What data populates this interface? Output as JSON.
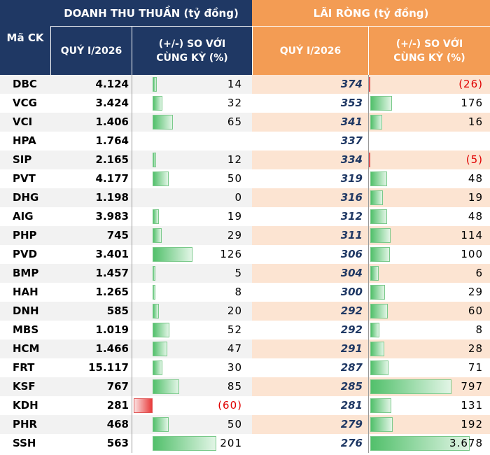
{
  "headers": {
    "ticker": "Mã CK",
    "revenue_group": "DOANH THU THUẦN (tỷ đồng)",
    "profit_group": "LÃI RÒNG (tỷ đồng)",
    "quarter_label": "QUÝ I/2026",
    "change_line1": "(+/-) SO VỚI",
    "change_line2": "CÙNG KỲ (%)"
  },
  "rows": [
    {
      "ticker": "DBC",
      "revenue": "4.124",
      "rev_change": "14",
      "rev_pct": 14,
      "profit": "374",
      "profit_change": "(26)",
      "profit_pct": -26
    },
    {
      "ticker": "VCG",
      "revenue": "3.424",
      "rev_change": "32",
      "rev_pct": 32,
      "profit": "353",
      "profit_change": "176",
      "profit_pct": 176
    },
    {
      "ticker": "VCI",
      "revenue": "1.406",
      "rev_change": "65",
      "rev_pct": 65,
      "profit": "341",
      "profit_change": "16",
      "profit_pct": 16
    },
    {
      "ticker": "HPA",
      "revenue": "1.764",
      "rev_change": "",
      "rev_pct": 0,
      "profit": "337",
      "profit_change": "",
      "profit_pct": 0
    },
    {
      "ticker": "SIP",
      "revenue": "2.165",
      "rev_change": "12",
      "rev_pct": 12,
      "profit": "334",
      "profit_change": "(5)",
      "profit_pct": -5
    },
    {
      "ticker": "PVT",
      "revenue": "4.177",
      "rev_change": "50",
      "rev_pct": 50,
      "profit": "319",
      "profit_change": "48",
      "profit_pct": 48
    },
    {
      "ticker": "DHG",
      "revenue": "1.198",
      "rev_change": "0",
      "rev_pct": 0,
      "profit": "316",
      "profit_change": "19",
      "profit_pct": 19
    },
    {
      "ticker": "AIG",
      "revenue": "3.983",
      "rev_change": "19",
      "rev_pct": 19,
      "profit": "312",
      "profit_change": "48",
      "profit_pct": 48
    },
    {
      "ticker": "PHP",
      "revenue": "745",
      "rev_change": "29",
      "rev_pct": 29,
      "profit": "311",
      "profit_change": "114",
      "profit_pct": 114
    },
    {
      "ticker": "PVD",
      "revenue": "3.401",
      "rev_change": "126",
      "rev_pct": 126,
      "profit": "306",
      "profit_change": "100",
      "profit_pct": 100
    },
    {
      "ticker": "BMP",
      "revenue": "1.457",
      "rev_change": "5",
      "rev_pct": 5,
      "profit": "304",
      "profit_change": "6",
      "profit_pct": 6
    },
    {
      "ticker": "HAH",
      "revenue": "1.265",
      "rev_change": "8",
      "rev_pct": 8,
      "profit": "300",
      "profit_change": "29",
      "profit_pct": 29
    },
    {
      "ticker": "DNH",
      "revenue": "585",
      "rev_change": "20",
      "rev_pct": 20,
      "profit": "292",
      "profit_change": "60",
      "profit_pct": 60
    },
    {
      "ticker": "MBS",
      "revenue": "1.019",
      "rev_change": "52",
      "rev_pct": 52,
      "profit": "292",
      "profit_change": "8",
      "profit_pct": 8
    },
    {
      "ticker": "HCM",
      "revenue": "1.466",
      "rev_change": "47",
      "rev_pct": 47,
      "profit": "291",
      "profit_change": "28",
      "profit_pct": 28
    },
    {
      "ticker": "FRT",
      "revenue": "15.117",
      "rev_change": "30",
      "rev_pct": 30,
      "profit": "287",
      "profit_change": "71",
      "profit_pct": 71
    },
    {
      "ticker": "KSF",
      "revenue": "767",
      "rev_change": "85",
      "rev_pct": 85,
      "profit": "285",
      "profit_change": "797",
      "profit_pct": 797
    },
    {
      "ticker": "KDH",
      "revenue": "281",
      "rev_change": "(60)",
      "rev_pct": -60,
      "profit": "281",
      "profit_change": "131",
      "profit_pct": 131
    },
    {
      "ticker": "PHR",
      "revenue": "468",
      "rev_change": "50",
      "rev_pct": 50,
      "profit": "279",
      "profit_change": "192",
      "profit_pct": 192
    },
    {
      "ticker": "SSH",
      "revenue": "563",
      "rev_change": "201",
      "rev_pct": 201,
      "profit": "276",
      "profit_change": "3.678",
      "profit_pct": 3678
    }
  ],
  "colors": {
    "header_revenue": "#1f3864",
    "header_profit": "#f39c54",
    "bar_positive": "#52c06b",
    "bar_negative": "#e83a3a",
    "negative_text": "#e00000"
  }
}
